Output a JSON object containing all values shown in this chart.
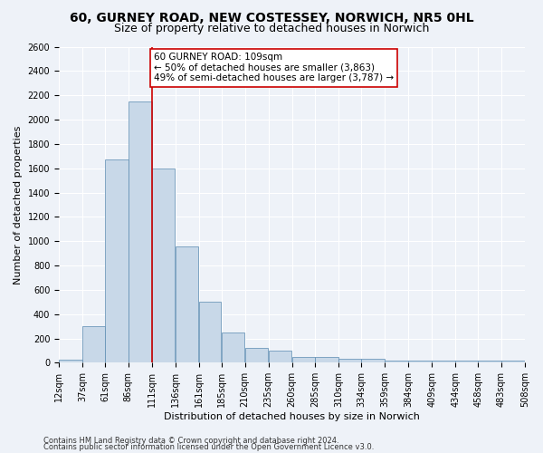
{
  "title1": "60, GURNEY ROAD, NEW COSTESSEY, NORWICH, NR5 0HL",
  "title2": "Size of property relative to detached houses in Norwich",
  "xlabel": "Distribution of detached houses by size in Norwich",
  "ylabel": "Number of detached properties",
  "bar_values": [
    25,
    300,
    1670,
    2150,
    1595,
    960,
    500,
    250,
    120,
    100,
    50,
    50,
    30,
    30,
    20,
    20,
    20,
    20,
    20,
    20
  ],
  "bin_edges": [
    12,
    37,
    61,
    86,
    111,
    136,
    161,
    185,
    210,
    235,
    260,
    285,
    310,
    334,
    359,
    384,
    409,
    434,
    458,
    483,
    508
  ],
  "tick_labels": [
    "12sqm",
    "37sqm",
    "61sqm",
    "86sqm",
    "111sqm",
    "136sqm",
    "161sqm",
    "185sqm",
    "210sqm",
    "235sqm",
    "260sqm",
    "285sqm",
    "310sqm",
    "334sqm",
    "359sqm",
    "384sqm",
    "409sqm",
    "434sqm",
    "458sqm",
    "483sqm",
    "508sqm"
  ],
  "bar_color": "#c8d8e8",
  "bar_edge_color": "#5a8ab0",
  "vline_x": 111,
  "vline_color": "#cc0000",
  "annotation_line1": "60 GURNEY ROAD: 109sqm",
  "annotation_line2": "← 50% of detached houses are smaller (3,863)",
  "annotation_line3": "49% of semi-detached houses are larger (3,787) →",
  "annotation_box_color": "#ffffff",
  "annotation_box_edge": "#cc0000",
  "ylim": [
    0,
    2600
  ],
  "yticks": [
    0,
    200,
    400,
    600,
    800,
    1000,
    1200,
    1400,
    1600,
    1800,
    2000,
    2200,
    2400,
    2600
  ],
  "footer1": "Contains HM Land Registry data © Crown copyright and database right 2024.",
  "footer2": "Contains public sector information licensed under the Open Government Licence v3.0.",
  "background_color": "#eef2f8",
  "grid_color": "#ffffff",
  "title1_fontsize": 10,
  "title2_fontsize": 9,
  "tick_fontsize": 7,
  "ylabel_fontsize": 8,
  "xlabel_fontsize": 8,
  "annotation_fontsize": 7.5,
  "footer_fontsize": 6
}
